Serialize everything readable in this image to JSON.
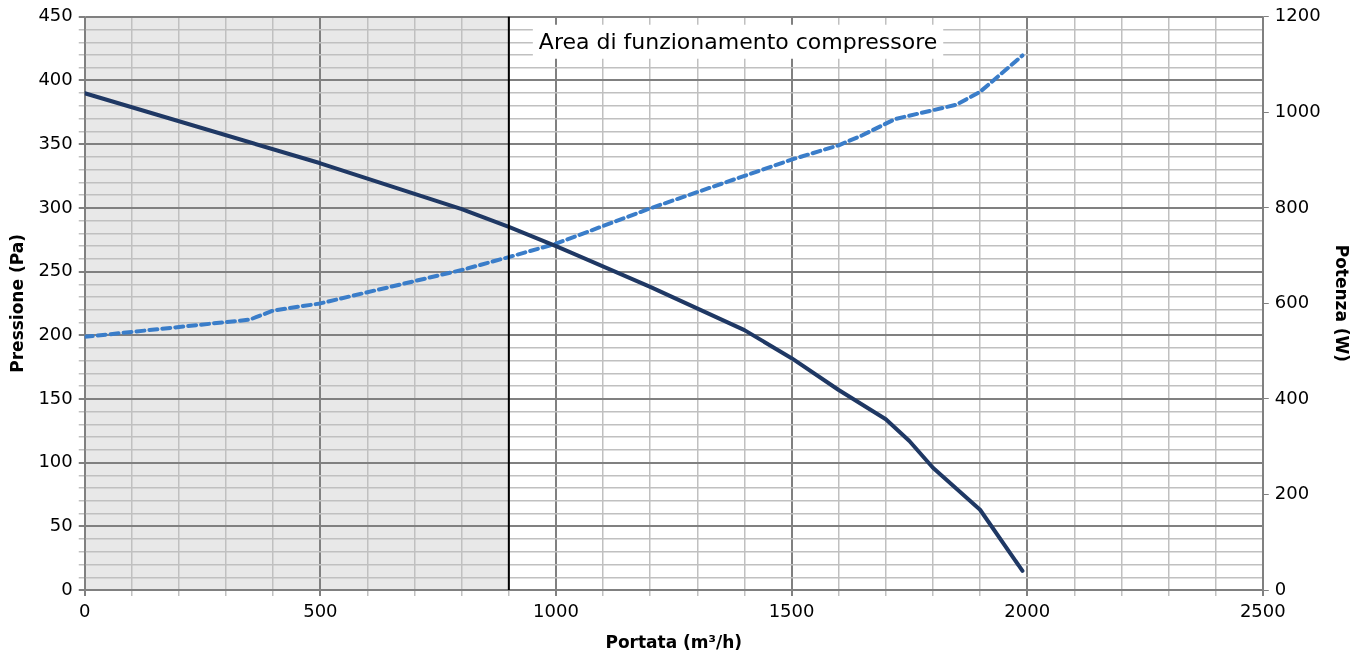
{
  "chart_data": {
    "type": "line",
    "xlabel": "Portata (m³/h)",
    "ylabel": "Pressione (Pa)",
    "y2label": "Potenza (W)",
    "xlim": [
      0,
      2500
    ],
    "xticks": [
      0,
      {
        "value": 100,
        "label": null
      },
      {
        "value": 200,
        "label": null
      },
      {
        "value": 300,
        "label": null
      },
      {
        "value": 400,
        "label": null
      },
      500,
      {
        "value": 600,
        "label": null
      },
      {
        "value": 700,
        "label": null
      },
      {
        "value": 800,
        "label": null
      },
      {
        "value": 900,
        "label": null
      },
      1000,
      {
        "value": 1100,
        "label": null
      },
      {
        "value": 1200,
        "label": null
      },
      {
        "value": 1300,
        "label": null
      },
      {
        "value": 1400,
        "label": null
      },
      1500,
      {
        "value": 1600,
        "label": null
      },
      {
        "value": 1700,
        "label": null
      },
      {
        "value": 1800,
        "label": null
      },
      {
        "value": 1900,
        "label": null
      },
      2000,
      {
        "value": 2100,
        "label": null
      },
      {
        "value": 2200,
        "label": null
      },
      {
        "value": 2300,
        "label": null
      },
      {
        "value": 2400,
        "label": null
      },
      2500
    ],
    "ylim": [
      0,
      450
    ],
    "yticks": [
      0,
      {
        "value": 10,
        "label": null
      },
      {
        "value": 20,
        "label": null
      },
      {
        "value": 30,
        "label": null
      },
      {
        "value": 40,
        "label": null
      },
      50,
      {
        "value": 60,
        "label": null
      },
      {
        "value": 70,
        "label": null
      },
      {
        "value": 80,
        "label": null
      },
      {
        "value": 90,
        "label": null
      },
      100,
      {
        "value": 110,
        "label": null
      },
      {
        "value": 120,
        "label": null
      },
      {
        "value": 130,
        "label": null
      },
      {
        "value": 140,
        "label": null
      },
      150,
      {
        "value": 160,
        "label": null
      },
      {
        "value": 170,
        "label": null
      },
      {
        "value": 180,
        "label": null
      },
      {
        "value": 190,
        "label": null
      },
      200,
      {
        "value": 210,
        "label": null
      },
      {
        "value": 220,
        "label": null
      },
      {
        "value": 230,
        "label": null
      },
      {
        "value": 240,
        "label": null
      },
      250,
      {
        "value": 260,
        "label": null
      },
      {
        "value": 270,
        "label": null
      },
      {
        "value": 280,
        "label": null
      },
      {
        "value": 290,
        "label": null
      },
      300,
      {
        "value": 310,
        "label": null
      },
      {
        "value": 320,
        "label": null
      },
      {
        "value": 330,
        "label": null
      },
      {
        "value": 340,
        "label": null
      },
      350,
      {
        "value": 360,
        "label": null
      },
      {
        "value": 370,
        "label": null
      },
      {
        "value": 380,
        "label": null
      },
      {
        "value": 390,
        "label": null
      },
      400,
      {
        "value": 410,
        "label": null
      },
      {
        "value": 420,
        "label": null
      },
      {
        "value": 430,
        "label": null
      },
      {
        "value": 440,
        "label": null
      },
      450
    ],
    "y2lim": [
      0,
      1200
    ],
    "y2ticks": [
      0,
      200,
      400,
      600,
      800,
      1000,
      1200
    ],
    "grid": true,
    "bands": [
      {
        "axis": "x",
        "from": 0,
        "to": 900,
        "color": "#e8e8e8"
      }
    ],
    "ref_lines": [
      {
        "axis": "x",
        "value": 900,
        "label": "Area di funzionamento compressore",
        "color": "#000000"
      }
    ],
    "series": [
      {
        "type": "line",
        "color": "#1f3864",
        "line_style": "solid",
        "x": [
          0,
          500,
          800,
          900,
          1000,
          1200,
          1400,
          1500,
          1600,
          1700,
          1750,
          1800,
          1900,
          1990
        ],
        "values": [
          390,
          335,
          299,
          285,
          270,
          238,
          204,
          182,
          157,
          134,
          117,
          96,
          63,
          15
        ]
      },
      {
        "type": "line",
        "axis": "y2",
        "color": "#3a7dc9",
        "line_style": "dashed",
        "x": [
          0,
          350,
          400,
          500,
          800,
          900,
          1000,
          1200,
          1400,
          1500,
          1600,
          1650,
          1720,
          1850,
          1900,
          1990
        ],
        "values": [
          530,
          566,
          585,
          600,
          670,
          697,
          725,
          799,
          867,
          901,
          931,
          952,
          986,
          1016,
          1043,
          1119
        ]
      }
    ]
  }
}
